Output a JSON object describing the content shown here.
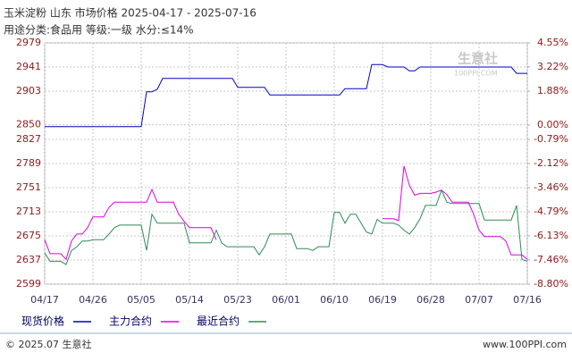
{
  "chart_data": {
    "type": "line",
    "title": "玉米淀粉 山东 市场价格 2025-04-17 - 2025-07-16",
    "subtitle": "用途分类:食品用 等级:一级 水分:≤14%",
    "watermark": [
      "生意社",
      "100PPI.COM"
    ],
    "footer": [
      "© 2025.07 生意社",
      "www.100PPI.com"
    ],
    "categories": [
      "04/17",
      null,
      null,
      null,
      null,
      null,
      null,
      null,
      null,
      "04/26",
      null,
      null,
      null,
      null,
      null,
      null,
      null,
      null,
      "05/05",
      null,
      null,
      null,
      null,
      null,
      null,
      null,
      null,
      "05/14",
      null,
      null,
      null,
      null,
      null,
      null,
      null,
      null,
      "05/23",
      null,
      null,
      null,
      null,
      null,
      null,
      null,
      null,
      "06/01",
      null,
      null,
      null,
      null,
      null,
      null,
      null,
      null,
      "06/10",
      null,
      null,
      null,
      null,
      null,
      null,
      null,
      null,
      "06/19",
      null,
      null,
      null,
      null,
      null,
      null,
      null,
      null,
      "06/28",
      null,
      null,
      null,
      null,
      null,
      null,
      null,
      null,
      "07/07",
      null,
      null,
      null,
      null,
      null,
      null,
      null,
      null,
      "07/16"
    ],
    "series": [
      {
        "name": "现货价格",
        "color": "#0000cc",
        "values": [
          2847,
          2847,
          2847,
          2847,
          2847,
          2847,
          2847,
          2847,
          2847,
          2847,
          2847,
          2847,
          2847,
          2847,
          2847,
          2847,
          2847,
          2847,
          2847,
          2902,
          2902,
          2906,
          2923,
          2923,
          2923,
          2923,
          2923,
          2923,
          2923,
          2923,
          2923,
          2923,
          2923,
          2923,
          2923,
          2923,
          2909,
          2909,
          2909,
          2909,
          2909,
          2909,
          2897,
          2897,
          2897,
          2897,
          2897,
          2897,
          2897,
          2897,
          2897,
          2897,
          2897,
          2897,
          2897,
          2897,
          2907,
          2907,
          2907,
          2907,
          2907,
          2945,
          2945,
          2945,
          2941,
          2941,
          2941,
          2941,
          2935,
          2935,
          2941,
          2941,
          2941,
          2941,
          2941,
          2941,
          2941,
          2941,
          2941,
          2941,
          2941,
          2941,
          2941,
          2941,
          2941,
          2941,
          2941,
          2941,
          2931,
          2931,
          2931
        ]
      },
      {
        "name": "主力合约",
        "color": "#e000e0",
        "values": [
          2669,
          2647,
          2647,
          2647,
          2638,
          2667,
          2678,
          2678,
          2688,
          2705,
          2705,
          2705,
          2720,
          2728,
          2728,
          2728,
          2728,
          2728,
          2728,
          2728,
          2748,
          2728,
          2728,
          2728,
          2728,
          2709,
          2698,
          2688,
          2688,
          2688,
          2688,
          2688,
          2669,
          null,
          null,
          null,
          null,
          null,
          null,
          null,
          null,
          null,
          null,
          null,
          null,
          null,
          null,
          null,
          null,
          null,
          null,
          null,
          null,
          null,
          null,
          null,
          null,
          null,
          null,
          null,
          null,
          null,
          null,
          2702,
          2702,
          2702,
          2699,
          2785,
          2755,
          2739,
          2742,
          2742,
          2742,
          2744,
          2747,
          2740,
          2728,
          2728,
          2728,
          2728,
          2709,
          2684,
          2674,
          2674,
          2674,
          2674,
          2667,
          2645,
          2645,
          2645,
          2638
        ]
      },
      {
        "name": "最近合约",
        "color": "#2e8b57",
        "values": [
          2648,
          2635,
          2635,
          2635,
          2630,
          2652,
          2658,
          2667,
          2667,
          2669,
          2669,
          2669,
          2678,
          2688,
          2692,
          2692,
          2692,
          2692,
          2692,
          2652,
          2709,
          2695,
          2695,
          2695,
          2695,
          2695,
          2695,
          2664,
          2664,
          2664,
          2664,
          2664,
          2684,
          2664,
          2658,
          2658,
          2658,
          2658,
          2658,
          2658,
          2645,
          2658,
          2678,
          2678,
          2678,
          2678,
          2678,
          2655,
          2655,
          2655,
          2652,
          2658,
          2658,
          2658,
          2712,
          2712,
          2695,
          2709,
          2709,
          2695,
          2681,
          2678,
          2701,
          2695,
          2695,
          2695,
          2692,
          2684,
          2678,
          2688,
          2702,
          2723,
          2723,
          2723,
          2747,
          2728,
          2726,
          2726,
          2726,
          2726,
          2726,
          2726,
          2700,
          2700,
          2700,
          2700,
          2700,
          2700,
          2723,
          2638,
          2635
        ]
      }
    ],
    "ylim": [
      2599,
      2979
    ],
    "yticks": [
      2979,
      2941,
      2903,
      2850,
      2827,
      2789,
      2751,
      2713,
      2675,
      2637,
      2599
    ],
    "y2lim": [
      -8.8,
      4.55
    ],
    "y2ticks": [
      {
        "value": 4.55,
        "label": "4.55%"
      },
      {
        "value": 3.22,
        "label": "3.22%"
      },
      {
        "value": 1.88,
        "label": "1.88%"
      },
      {
        "value": 0,
        "label": "0.00%"
      },
      {
        "value": -0.79,
        "label": "-0.79%"
      },
      {
        "value": -2.12,
        "label": "-2.12%"
      },
      {
        "value": -3.46,
        "label": "-3.46%"
      },
      {
        "value": -4.79,
        "label": "-4.79%"
      },
      {
        "value": -6.13,
        "label": "-6.13%"
      },
      {
        "value": -7.46,
        "label": "-7.46%"
      },
      {
        "value": -8.8,
        "label": "-8.80%"
      }
    ],
    "grid": true
  }
}
